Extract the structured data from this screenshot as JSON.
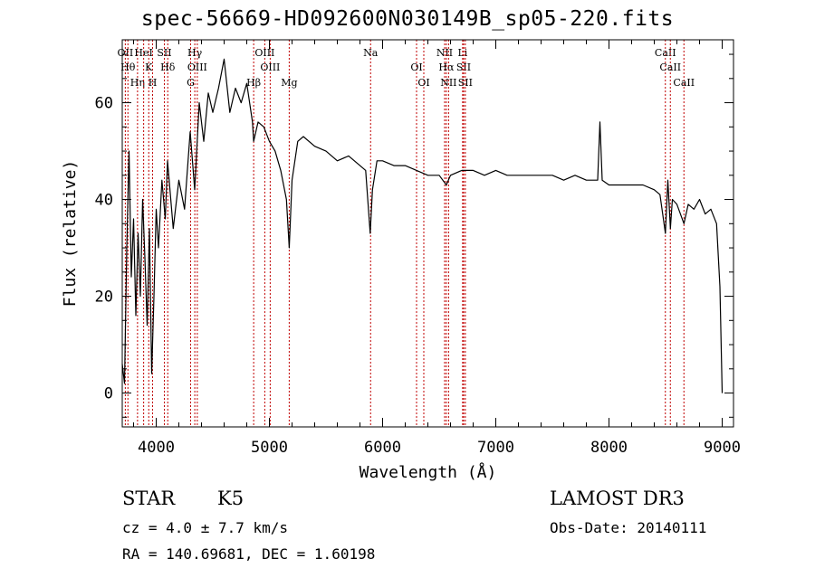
{
  "title": "spec-56669-HD092600N030149B_sp05-220.fits",
  "info": {
    "class_label": "STAR",
    "subclass": "K5",
    "cz": "cz = 4.0 ± 7.7 km/s",
    "radec": "RA = 140.69681, DEC =    1.60198",
    "survey": "LAMOST DR3",
    "obs_date": "Obs-Date: 20140111"
  },
  "chart_data": {
    "type": "line",
    "xlabel": "Wavelength (Å)",
    "ylabel": "Flux (relative)",
    "xlim": [
      3700,
      9100
    ],
    "ylim": [
      -7,
      73
    ],
    "xticks": [
      4000,
      5000,
      6000,
      7000,
      8000,
      9000
    ],
    "yticks": [
      0,
      20,
      40,
      60
    ],
    "grid": false,
    "line_color": "#000000",
    "marker_color": "#c00000",
    "series": [
      {
        "points": [
          [
            3700,
            6
          ],
          [
            3720,
            2
          ],
          [
            3740,
            30
          ],
          [
            3760,
            50
          ],
          [
            3780,
            24
          ],
          [
            3800,
            36
          ],
          [
            3820,
            16
          ],
          [
            3840,
            33
          ],
          [
            3860,
            20
          ],
          [
            3880,
            40
          ],
          [
            3900,
            28
          ],
          [
            3920,
            14
          ],
          [
            3940,
            34
          ],
          [
            3960,
            4
          ],
          [
            3980,
            20
          ],
          [
            4000,
            38
          ],
          [
            4020,
            30
          ],
          [
            4050,
            44
          ],
          [
            4080,
            36
          ],
          [
            4100,
            48
          ],
          [
            4150,
            34
          ],
          [
            4200,
            44
          ],
          [
            4250,
            38
          ],
          [
            4300,
            54
          ],
          [
            4340,
            42
          ],
          [
            4380,
            60
          ],
          [
            4420,
            52
          ],
          [
            4460,
            62
          ],
          [
            4500,
            58
          ],
          [
            4550,
            63
          ],
          [
            4600,
            69
          ],
          [
            4650,
            58
          ],
          [
            4700,
            63
          ],
          [
            4750,
            60
          ],
          [
            4800,
            64
          ],
          [
            4850,
            56
          ],
          [
            4861,
            52
          ],
          [
            4900,
            56
          ],
          [
            4950,
            55
          ],
          [
            5000,
            52
          ],
          [
            5050,
            50
          ],
          [
            5100,
            46
          ],
          [
            5150,
            40
          ],
          [
            5175,
            30
          ],
          [
            5200,
            44
          ],
          [
            5250,
            52
          ],
          [
            5300,
            53
          ],
          [
            5400,
            51
          ],
          [
            5500,
            50
          ],
          [
            5600,
            48
          ],
          [
            5700,
            49
          ],
          [
            5800,
            47
          ],
          [
            5850,
            46
          ],
          [
            5890,
            33
          ],
          [
            5910,
            42
          ],
          [
            5950,
            48
          ],
          [
            6000,
            48
          ],
          [
            6100,
            47
          ],
          [
            6200,
            47
          ],
          [
            6300,
            46
          ],
          [
            6400,
            45
          ],
          [
            6500,
            45
          ],
          [
            6563,
            43
          ],
          [
            6600,
            45
          ],
          [
            6700,
            46
          ],
          [
            6800,
            46
          ],
          [
            6900,
            45
          ],
          [
            7000,
            46
          ],
          [
            7100,
            45
          ],
          [
            7200,
            45
          ],
          [
            7300,
            45
          ],
          [
            7400,
            45
          ],
          [
            7500,
            45
          ],
          [
            7600,
            44
          ],
          [
            7700,
            45
          ],
          [
            7800,
            44
          ],
          [
            7900,
            44
          ],
          [
            7920,
            56
          ],
          [
            7940,
            44
          ],
          [
            8000,
            43
          ],
          [
            8100,
            43
          ],
          [
            8200,
            43
          ],
          [
            8300,
            43
          ],
          [
            8400,
            42
          ],
          [
            8450,
            41
          ],
          [
            8498,
            33
          ],
          [
            8520,
            44
          ],
          [
            8542,
            34
          ],
          [
            8560,
            40
          ],
          [
            8600,
            39
          ],
          [
            8662,
            35
          ],
          [
            8700,
            39
          ],
          [
            8750,
            38
          ],
          [
            8800,
            40
          ],
          [
            8850,
            37
          ],
          [
            8900,
            38
          ],
          [
            8950,
            35
          ],
          [
            8980,
            22
          ],
          [
            9000,
            0
          ]
        ]
      }
    ],
    "line_markers": [
      {
        "label": "OII",
        "x": 3727
      },
      {
        "label": "Hθ",
        "x": 3750
      },
      {
        "label": "Hη",
        "x": 3835
      },
      {
        "label": "HeI",
        "x": 3889
      },
      {
        "label": "K",
        "x": 3934
      },
      {
        "label": "H",
        "x": 3968
      },
      {
        "label": "SII",
        "x": 4072
      },
      {
        "label": "Hδ",
        "x": 4102
      },
      {
        "label": "G",
        "x": 4304
      },
      {
        "label": "Hγ",
        "x": 4341
      },
      {
        "label": "OIII",
        "x": 4363
      },
      {
        "label": "Hβ",
        "x": 4861
      },
      {
        "label": "OIII",
        "x": 4959
      },
      {
        "label": "OIII",
        "x": 5007
      },
      {
        "label": "Mg",
        "x": 5175
      },
      {
        "label": "Na",
        "x": 5894
      },
      {
        "label": "OI",
        "x": 6300
      },
      {
        "label": "OI",
        "x": 6364
      },
      {
        "label": "NII",
        "x": 6548
      },
      {
        "label": "Hα",
        "x": 6563
      },
      {
        "label": "NII",
        "x": 6583
      },
      {
        "label": "Li",
        "x": 6707
      },
      {
        "label": "SII",
        "x": 6716
      },
      {
        "label": "SII",
        "x": 6731
      },
      {
        "label": "CaII",
        "x": 8498
      },
      {
        "label": "CaII",
        "x": 8542
      },
      {
        "label": "CaII",
        "x": 8662
      }
    ]
  }
}
